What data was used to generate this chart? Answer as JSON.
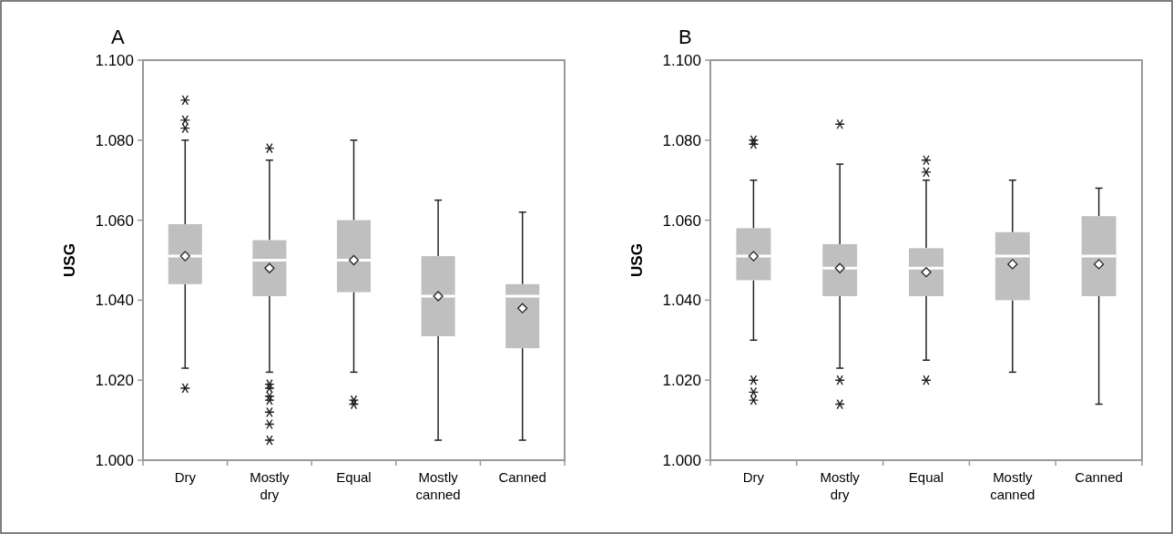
{
  "chart_data": [
    {
      "type": "box",
      "title": "A",
      "ylabel": "USG",
      "categories": [
        "Dry",
        "Mostly dry",
        "Equal",
        "Mostly canned",
        "Canned"
      ],
      "color": "#bfbfbf",
      "ylim": [
        1.0,
        1.1
      ],
      "yticks": [
        {
          "value": 1.0,
          "label": "1.000"
        },
        {
          "value": 1.02,
          "label": "1.020"
        },
        {
          "value": 1.04,
          "label": "1.040"
        },
        {
          "value": 1.06,
          "label": "1.060"
        },
        {
          "value": 1.08,
          "label": "1.080"
        },
        {
          "value": 1.1,
          "label": "1.100"
        }
      ],
      "grid": false,
      "boxes": [
        {
          "low": 1.023,
          "q1": 1.044,
          "median": 1.051,
          "q3": 1.059,
          "high": 1.08,
          "mean": 1.051,
          "outliers": [
            1.09,
            1.085,
            1.083,
            1.018
          ]
        },
        {
          "low": 1.022,
          "q1": 1.041,
          "median": 1.05,
          "q3": 1.055,
          "high": 1.075,
          "mean": 1.048,
          "outliers": [
            1.078,
            1.019,
            1.018,
            1.016,
            1.015,
            1.012,
            1.009,
            1.005
          ]
        },
        {
          "low": 1.022,
          "q1": 1.042,
          "median": 1.05,
          "q3": 1.06,
          "high": 1.08,
          "mean": 1.05,
          "outliers": [
            1.015,
            1.014
          ]
        },
        {
          "low": 1.005,
          "q1": 1.031,
          "median": 1.041,
          "q3": 1.051,
          "high": 1.065,
          "mean": 1.041
        },
        {
          "low": 1.005,
          "q1": 1.028,
          "median": 1.041,
          "q3": 1.044,
          "high": 1.062,
          "mean": 1.038
        }
      ]
    },
    {
      "type": "box",
      "title": "B",
      "ylabel": "USG",
      "categories": [
        "Dry",
        "Mostly dry",
        "Equal",
        "Mostly canned",
        "Canned"
      ],
      "color": "#bfbfbf",
      "ylim": [
        1.0,
        1.1
      ],
      "yticks": [
        {
          "value": 1.0,
          "label": "1.000"
        },
        {
          "value": 1.02,
          "label": "1.020"
        },
        {
          "value": 1.04,
          "label": "1.040"
        },
        {
          "value": 1.06,
          "label": "1.060"
        },
        {
          "value": 1.08,
          "label": "1.080"
        },
        {
          "value": 1.1,
          "label": "1.100"
        }
      ],
      "grid": false,
      "boxes": [
        {
          "low": 1.03,
          "q1": 1.045,
          "median": 1.051,
          "q3": 1.058,
          "high": 1.07,
          "mean": 1.051,
          "outliers": [
            1.08,
            1.079,
            1.02,
            1.017,
            1.015
          ]
        },
        {
          "low": 1.023,
          "q1": 1.041,
          "median": 1.048,
          "q3": 1.054,
          "high": 1.074,
          "mean": 1.048,
          "outliers": [
            1.084,
            1.02,
            1.014
          ]
        },
        {
          "low": 1.025,
          "q1": 1.041,
          "median": 1.048,
          "q3": 1.053,
          "high": 1.07,
          "mean": 1.047,
          "outliers": [
            1.075,
            1.072,
            1.02
          ]
        },
        {
          "low": 1.022,
          "q1": 1.04,
          "median": 1.051,
          "q3": 1.057,
          "high": 1.07,
          "mean": 1.049
        },
        {
          "low": 1.014,
          "q1": 1.041,
          "median": 1.051,
          "q3": 1.061,
          "high": 1.068,
          "mean": 1.049
        }
      ]
    }
  ]
}
